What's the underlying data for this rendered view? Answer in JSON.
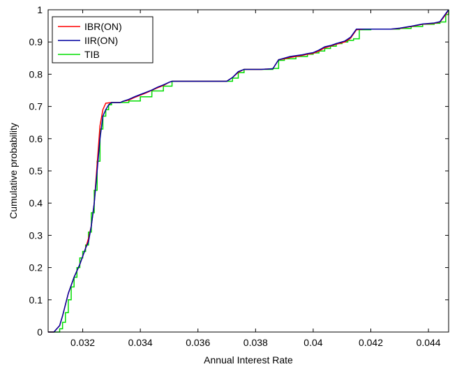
{
  "chart_data": {
    "type": "line",
    "xlabel": "Annual Interest Rate",
    "ylabel": "Cumulative probability",
    "xlim": [
      0.0308,
      0.0447
    ],
    "ylim": [
      0,
      1
    ],
    "xticks": [
      0.032,
      0.034,
      0.036,
      0.038,
      0.04,
      0.042,
      0.044
    ],
    "xtick_labels": [
      "0.032",
      "0.034",
      "0.036",
      "0.038",
      "0.04",
      "0.042",
      "0.044"
    ],
    "yticks": [
      0,
      0.1,
      0.2,
      0.3,
      0.4,
      0.5,
      0.6,
      0.7,
      0.8,
      0.9,
      1
    ],
    "ytick_labels": [
      "0",
      "0.1",
      "0.2",
      "0.3",
      "0.4",
      "0.5",
      "0.6",
      "0.7",
      "0.8",
      "0.9",
      "1"
    ],
    "grid": false,
    "legend_position": "top-left",
    "series": [
      {
        "name": "IBR(ON)",
        "color": "#ff0000",
        "x": [
          0.0308,
          0.031,
          0.0312,
          0.0313,
          0.0315,
          0.0317,
          0.0319,
          0.0321,
          0.0322,
          0.0323,
          0.0324,
          0.0325,
          0.0326,
          0.0327,
          0.0328,
          0.033,
          0.0333,
          0.0334,
          0.0336,
          0.0338,
          0.034,
          0.0342,
          0.0344,
          0.0346,
          0.0348,
          0.035,
          0.0351,
          0.0352,
          0.036,
          0.037,
          0.0372,
          0.0374,
          0.0376,
          0.0382,
          0.0386,
          0.0388,
          0.039,
          0.0392,
          0.0396,
          0.0398,
          0.04,
          0.0402,
          0.0404,
          0.0406,
          0.0408,
          0.0411,
          0.0413,
          0.0415,
          0.0418,
          0.0423,
          0.0427,
          0.043,
          0.0434,
          0.0438,
          0.0442,
          0.0444,
          0.0446,
          0.0447
        ],
        "y": [
          0,
          0,
          0.02,
          0.05,
          0.12,
          0.17,
          0.21,
          0.26,
          0.29,
          0.33,
          0.4,
          0.52,
          0.64,
          0.69,
          0.71,
          0.712,
          0.712,
          0.716,
          0.72,
          0.728,
          0.735,
          0.742,
          0.75,
          0.758,
          0.765,
          0.775,
          0.778,
          0.778,
          0.778,
          0.778,
          0.79,
          0.806,
          0.815,
          0.815,
          0.817,
          0.845,
          0.848,
          0.852,
          0.858,
          0.862,
          0.865,
          0.872,
          0.882,
          0.887,
          0.893,
          0.9,
          0.912,
          0.938,
          0.94,
          0.94,
          0.94,
          0.942,
          0.948,
          0.955,
          0.958,
          0.962,
          0.985,
          1.0
        ]
      },
      {
        "name": "IIR(ON)",
        "color": "#0000a0",
        "x": [
          0.0308,
          0.031,
          0.0312,
          0.0313,
          0.0315,
          0.0317,
          0.0319,
          0.0321,
          0.0322,
          0.0323,
          0.0324,
          0.0325,
          0.0326,
          0.0327,
          0.0328,
          0.0329,
          0.033,
          0.0333,
          0.0334,
          0.0336,
          0.0338,
          0.034,
          0.0342,
          0.0344,
          0.0346,
          0.0348,
          0.035,
          0.0351,
          0.0352,
          0.036,
          0.037,
          0.0372,
          0.0374,
          0.0376,
          0.0382,
          0.0386,
          0.0388,
          0.039,
          0.0392,
          0.0396,
          0.0398,
          0.04,
          0.0402,
          0.0404,
          0.0406,
          0.0408,
          0.0411,
          0.0413,
          0.0415,
          0.0418,
          0.0423,
          0.0427,
          0.043,
          0.0434,
          0.0438,
          0.0442,
          0.0444,
          0.0446,
          0.0447
        ],
        "y": [
          0,
          0,
          0.02,
          0.05,
          0.12,
          0.17,
          0.21,
          0.26,
          0.28,
          0.33,
          0.4,
          0.5,
          0.6,
          0.67,
          0.69,
          0.705,
          0.712,
          0.712,
          0.716,
          0.722,
          0.73,
          0.737,
          0.744,
          0.751,
          0.76,
          0.767,
          0.775,
          0.778,
          0.778,
          0.778,
          0.778,
          0.79,
          0.808,
          0.815,
          0.815,
          0.817,
          0.845,
          0.85,
          0.855,
          0.86,
          0.864,
          0.867,
          0.875,
          0.885,
          0.889,
          0.895,
          0.903,
          0.915,
          0.94,
          0.94,
          0.94,
          0.94,
          0.943,
          0.949,
          0.956,
          0.959,
          0.963,
          0.988,
          1.0
        ]
      },
      {
        "name": "TIB",
        "color": "#00dd00",
        "x": [
          0.0308,
          0.0312,
          0.0313,
          0.0314,
          0.0315,
          0.0316,
          0.0317,
          0.0318,
          0.0319,
          0.032,
          0.0321,
          0.0322,
          0.0323,
          0.0324,
          0.0325,
          0.0326,
          0.0327,
          0.0328,
          0.0329,
          0.033,
          0.0333,
          0.0336,
          0.034,
          0.0344,
          0.0348,
          0.0351,
          0.036,
          0.037,
          0.0372,
          0.0374,
          0.0376,
          0.0382,
          0.0386,
          0.0388,
          0.039,
          0.0394,
          0.0398,
          0.04,
          0.0402,
          0.0404,
          0.0406,
          0.0408,
          0.041,
          0.0412,
          0.0414,
          0.0416,
          0.042,
          0.0425,
          0.043,
          0.0434,
          0.0438,
          0.0442,
          0.0444,
          0.0446,
          0.0447
        ],
        "y": [
          0,
          0.01,
          0.03,
          0.06,
          0.1,
          0.14,
          0.17,
          0.2,
          0.23,
          0.25,
          0.27,
          0.31,
          0.37,
          0.44,
          0.53,
          0.63,
          0.67,
          0.69,
          0.705,
          0.712,
          0.712,
          0.717,
          0.73,
          0.748,
          0.763,
          0.778,
          0.778,
          0.778,
          0.788,
          0.805,
          0.815,
          0.815,
          0.818,
          0.843,
          0.848,
          0.855,
          0.862,
          0.866,
          0.872,
          0.88,
          0.887,
          0.895,
          0.9,
          0.905,
          0.91,
          0.938,
          0.94,
          0.94,
          0.942,
          0.948,
          0.955,
          0.958,
          0.962,
          0.985,
          1.0
        ]
      }
    ]
  }
}
